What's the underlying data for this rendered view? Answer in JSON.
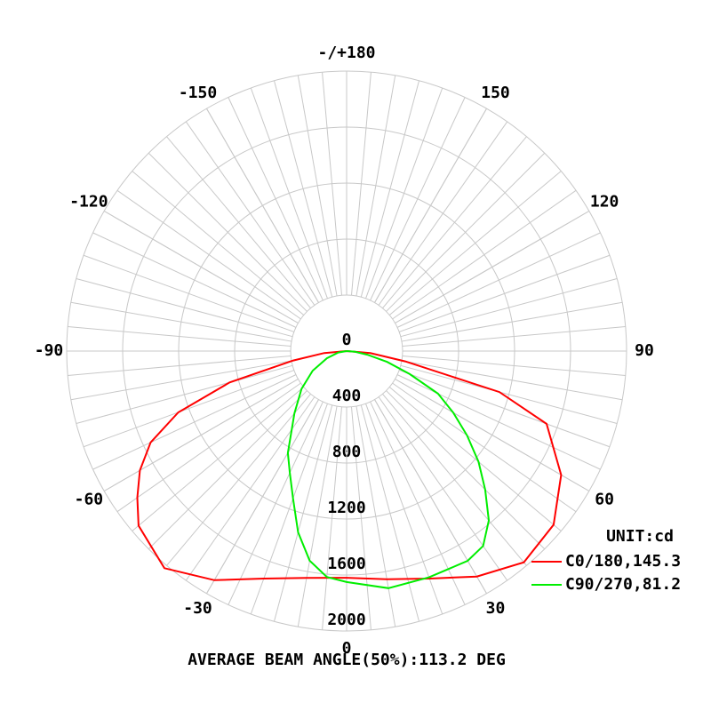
{
  "chart_data": {
    "type": "polar",
    "title": "AVERAGE BEAM ANGLE(50%):113.2 DEG",
    "unit_label": "UNIT:cd",
    "rlim": [
      0,
      2000
    ],
    "rticks": [
      0,
      400,
      800,
      1200,
      1600,
      2000
    ],
    "angle_ticks": [
      0,
      30,
      60,
      90,
      120,
      150,
      {
        "value": 180,
        "label": "-/+180"
      },
      -150,
      -120,
      -90,
      -60,
      -30
    ],
    "grid": true,
    "series": [
      {
        "name": "C0/180,145.3",
        "color": "#ff0000",
        "angles": [
          -90,
          -85,
          -80,
          -75,
          -70,
          -65,
          -60,
          -55,
          -50,
          -40,
          -30,
          -20,
          -10,
          0,
          10,
          20,
          30,
          40,
          50,
          60,
          70,
          75,
          80,
          85,
          90
        ],
        "values": [
          0,
          160,
          387,
          865,
          1280,
          1545,
          1705,
          1825,
          1940,
          2025,
          1890,
          1730,
          1645,
          1620,
          1655,
          1730,
          1860,
          1970,
          1930,
          1770,
          1520,
          1130,
          425,
          170,
          0
        ]
      },
      {
        "name": "C90/270,81.2",
        "color": "#00ee00",
        "angles": [
          -90,
          -80,
          -70,
          -60,
          -50,
          -40,
          -30,
          -25,
          -20,
          -15,
          -10,
          -5,
          0,
          10,
          20,
          30,
          35,
          40,
          45,
          50,
          55,
          60,
          65,
          70,
          75,
          80,
          85,
          90
        ],
        "values": [
          0,
          60,
          150,
          280,
          420,
          580,
          840,
          960,
          1120,
          1340,
          1520,
          1620,
          1650,
          1720,
          1720,
          1730,
          1700,
          1580,
          1400,
          1230,
          1050,
          880,
          720,
          480,
          300,
          150,
          60,
          0
        ]
      }
    ]
  }
}
